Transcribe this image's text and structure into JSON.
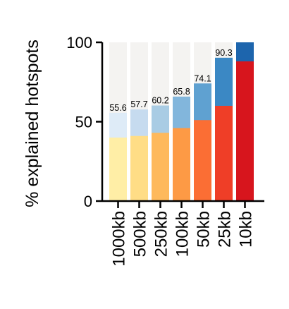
{
  "chart_data": {
    "type": "bar",
    "stacked_overlay": true,
    "ylabel": "% explained hotspots",
    "xlabel": "",
    "ylim": [
      0,
      100
    ],
    "yticks": [
      0,
      50,
      100
    ],
    "grid": false,
    "categories": [
      "1000kb",
      "500kb",
      "250kb",
      "100kb",
      "50kb",
      "25kb",
      "10kb"
    ],
    "series": [
      {
        "name": "total",
        "values": [
          100,
          100,
          100,
          100,
          100,
          100,
          100
        ]
      },
      {
        "name": "explained",
        "values": [
          55.6,
          57.7,
          60.2,
          65.8,
          74.1,
          90.3,
          100
        ]
      },
      {
        "name": "lower",
        "values": [
          40,
          41,
          43,
          46,
          51,
          60,
          88
        ]
      }
    ],
    "data_labels": [
      "55.6",
      "57.7",
      "60.2",
      "65.8",
      "74.1",
      "90.3",
      ""
    ],
    "colors": {
      "background_bar": "#f4f3f1",
      "explained": [
        "#deebf7",
        "#c6dbef",
        "#a9cce4",
        "#82b6dc",
        "#5fa1d1",
        "#3b88c4",
        "#1d65ad"
      ],
      "lower": [
        "#ffeea6",
        "#ffdd86",
        "#feb95c",
        "#fd9a45",
        "#fb6e34",
        "#ef3e27",
        "#d7151d"
      ],
      "axis": "#000000"
    }
  }
}
